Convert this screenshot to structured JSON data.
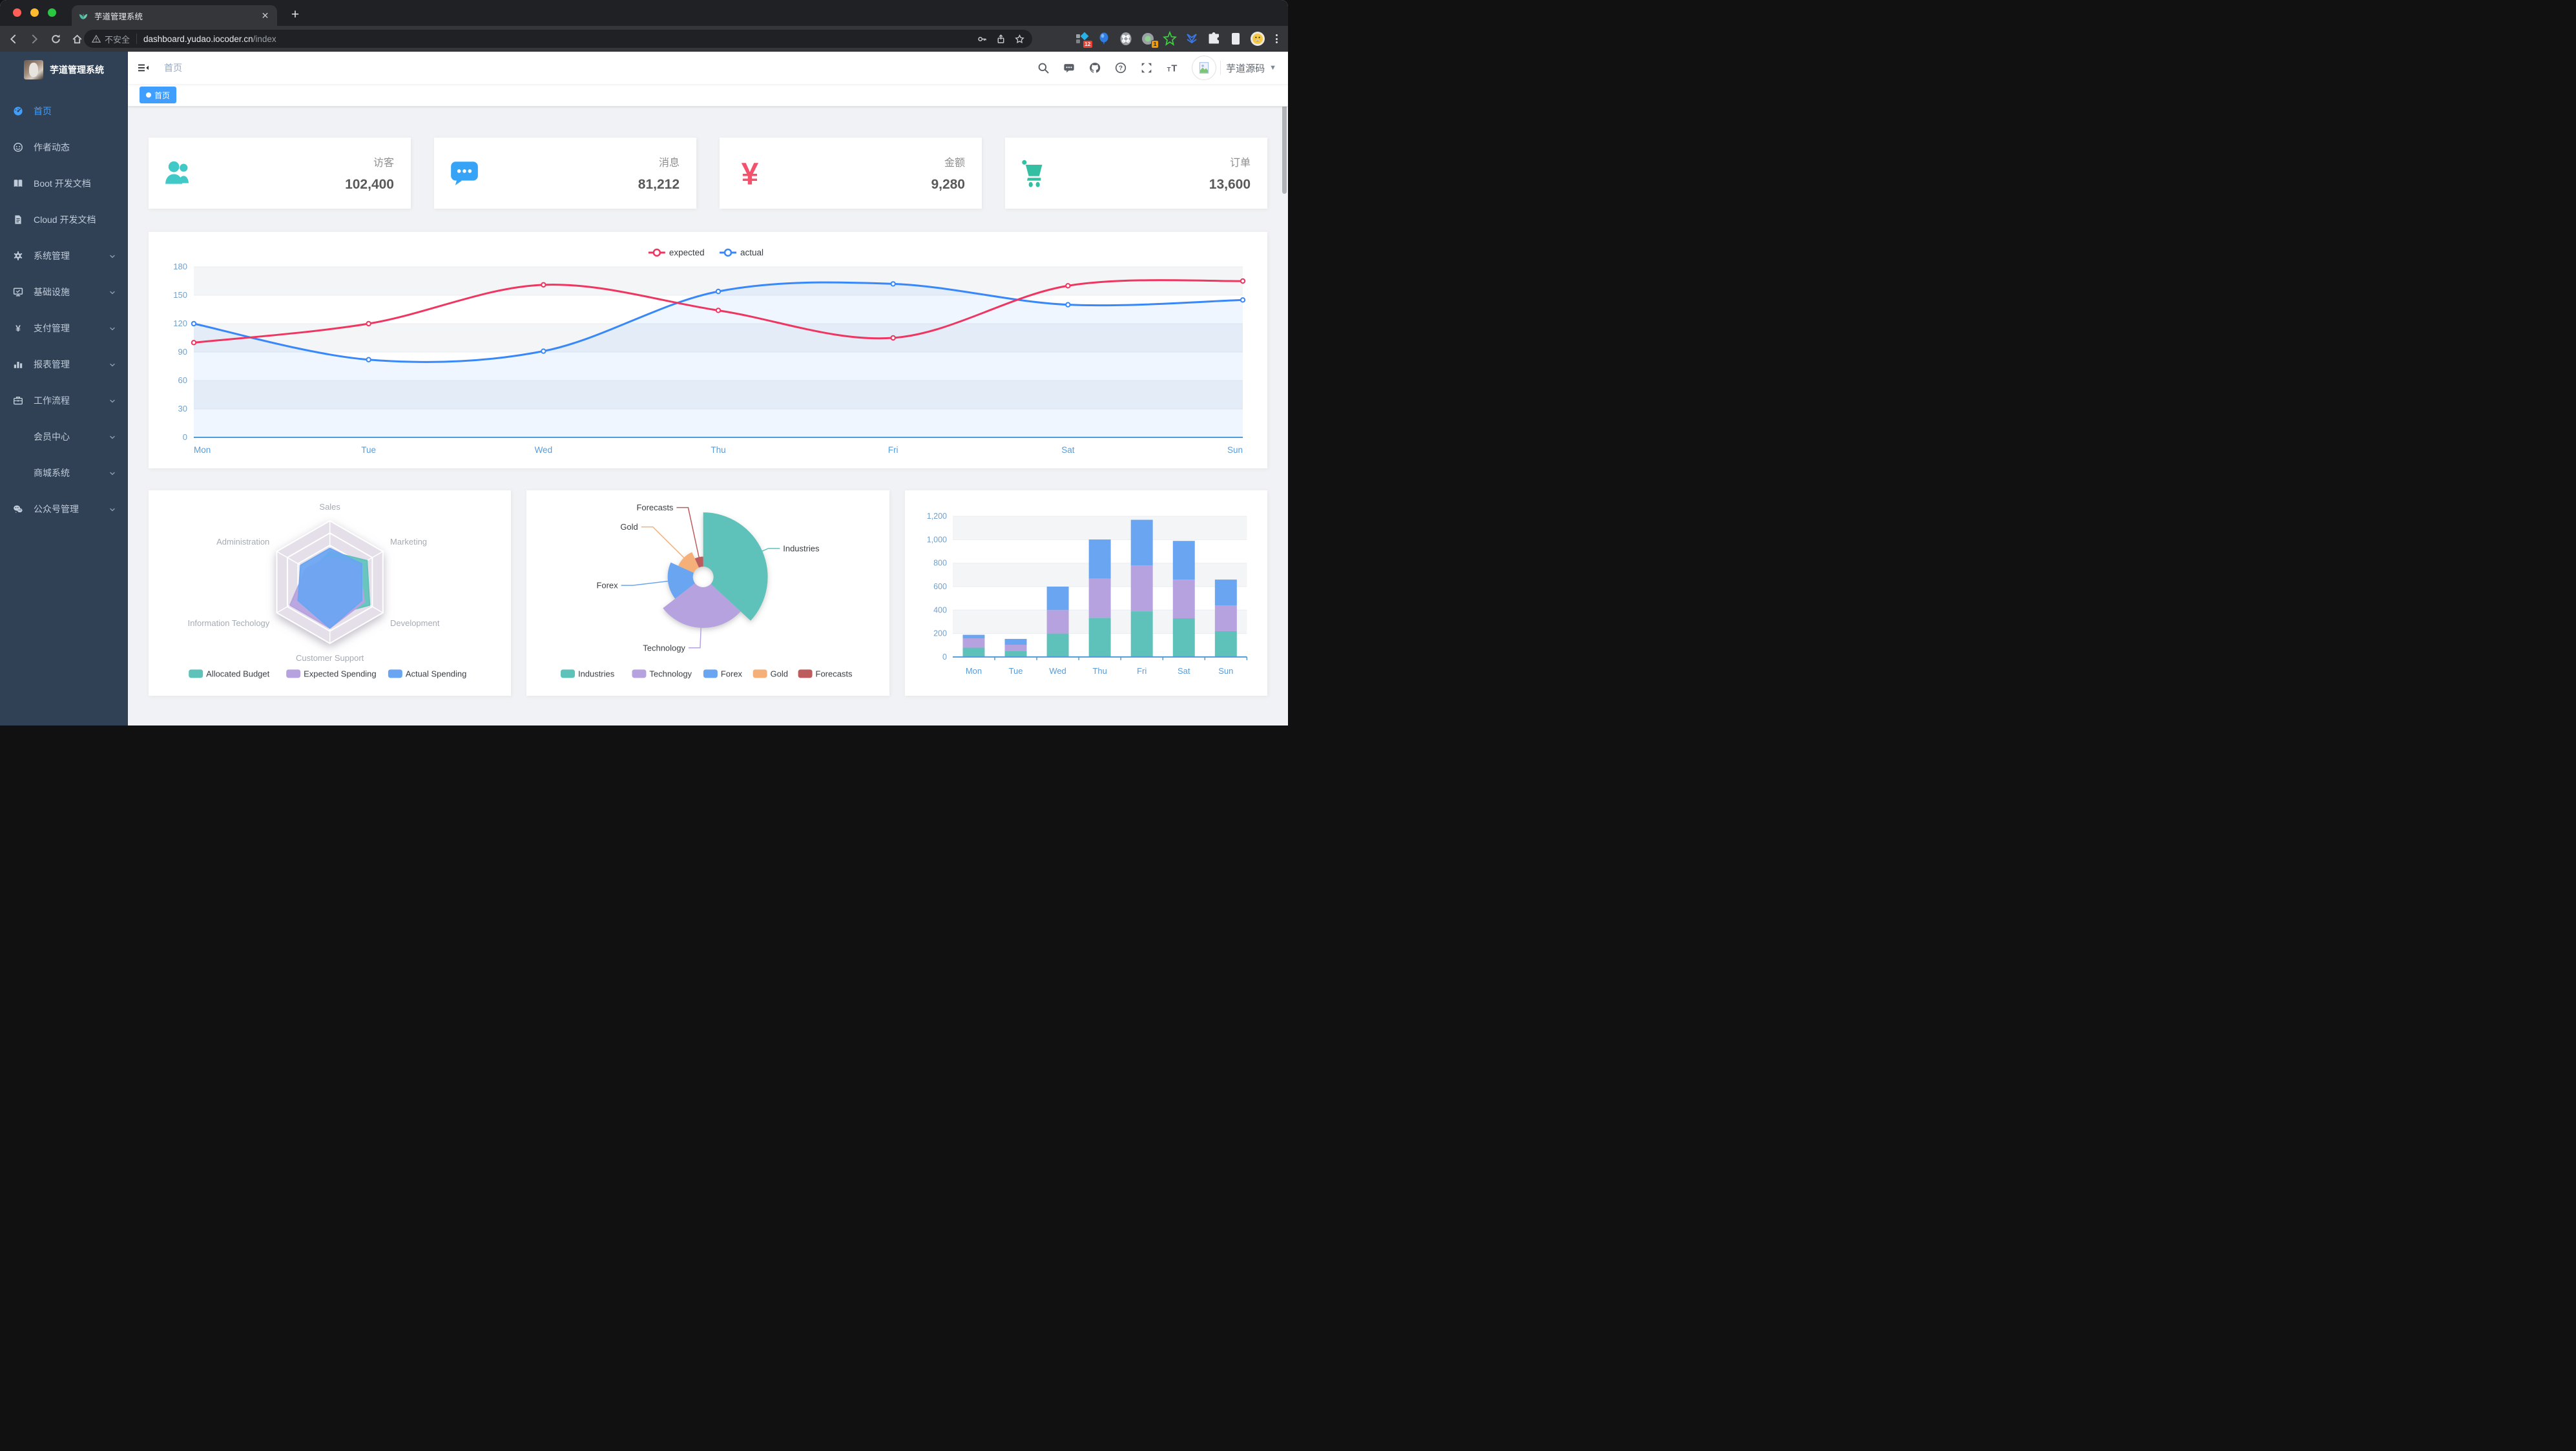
{
  "theme": {
    "accent": "#409eff",
    "sidebar_bg": "#304156",
    "sidebar_text": "#bfcbd9",
    "main_bg": "#f0f2f5",
    "chrome_bg": "#202124",
    "chrome_toolbar_bg": "#35363a"
  },
  "browser": {
    "window_controls": [
      "close",
      "minimize",
      "zoom"
    ],
    "tab": {
      "title": "芋道管理系统",
      "favicon": "leaf-icon"
    },
    "toolbar": {
      "security_chip": "不安全",
      "url_host": "dashboard.yudao.iocoder.cn",
      "url_path": "/index",
      "extensions": [
        {
          "name": "extension-diamond",
          "badge": "12"
        },
        {
          "name": "extension-balloon",
          "badge": ""
        },
        {
          "name": "extension-command",
          "badge": ""
        },
        {
          "name": "extension-status",
          "badge": "1"
        },
        {
          "name": "extension-green-star",
          "badge": ""
        },
        {
          "name": "extension-chevrons",
          "badge": ""
        }
      ]
    }
  },
  "sidebar": {
    "logo_title": "芋道管理系统",
    "items": [
      {
        "label": "首页",
        "icon": "dashboard-icon",
        "active": true,
        "arrow": false,
        "indent": false
      },
      {
        "label": "作者动态",
        "icon": "people-icon",
        "active": false,
        "arrow": false,
        "indent": false
      },
      {
        "label": "Boot 开发文档",
        "icon": "book-icon",
        "active": false,
        "arrow": false,
        "indent": false
      },
      {
        "label": "Cloud 开发文档",
        "icon": "document-icon",
        "active": false,
        "arrow": false,
        "indent": false
      },
      {
        "label": "系统管理",
        "icon": "gear-icon",
        "active": false,
        "arrow": true,
        "indent": false
      },
      {
        "label": "基础设施",
        "icon": "monitor-icon",
        "active": false,
        "arrow": true,
        "indent": false
      },
      {
        "label": "支付管理",
        "icon": "yen-icon",
        "active": false,
        "arrow": true,
        "indent": false
      },
      {
        "label": "报表管理",
        "icon": "bar-chart-icon",
        "active": false,
        "arrow": true,
        "indent": false
      },
      {
        "label": "工作流程",
        "icon": "briefcase-icon",
        "active": false,
        "arrow": true,
        "indent": false
      },
      {
        "label": "会员中心",
        "icon": null,
        "active": false,
        "arrow": true,
        "indent": true
      },
      {
        "label": "商城系统",
        "icon": null,
        "active": false,
        "arrow": true,
        "indent": true
      },
      {
        "label": "公众号管理",
        "icon": "wechat-icon",
        "active": false,
        "arrow": true,
        "indent": false
      }
    ]
  },
  "navbar": {
    "breadcrumb": "首页",
    "icons": [
      "search-icon",
      "message-icon",
      "github-icon",
      "question-icon",
      "fullscreen-icon",
      "font-size-icon"
    ],
    "username": "芋道源码"
  },
  "tags_view": {
    "tags": [
      {
        "label": "首页",
        "active": true
      }
    ]
  },
  "stat_cards": [
    {
      "label": "访客",
      "value": "102,400",
      "icon": "people-group-icon",
      "color": "#40c9c6"
    },
    {
      "label": "消息",
      "value": "81,212",
      "icon": "chat-bubble-icon",
      "color": "#36a3f7"
    },
    {
      "label": "金额",
      "value": "9,280",
      "icon": "yen-money-icon",
      "color": "#f4516c"
    },
    {
      "label": "订单",
      "value": "13,600",
      "icon": "shopping-cart-icon",
      "color": "#34bfa3"
    }
  ],
  "chart_data": [
    {
      "type": "line",
      "categories": [
        "Mon",
        "Tue",
        "Wed",
        "Thu",
        "Fri",
        "Sat",
        "Sun"
      ],
      "series": [
        {
          "name": "expected",
          "color": "#ef3661",
          "values": [
            100,
            120,
            161,
            134,
            105,
            160,
            165
          ]
        },
        {
          "name": "actual",
          "color": "#3888fa",
          "area": "rgba(56,136,250,0.08)",
          "values": [
            120,
            82,
            91,
            154,
            162,
            140,
            145
          ]
        }
      ],
      "ylim": [
        0,
        180
      ],
      "ytick": 30,
      "legend": [
        "expected",
        "actual"
      ],
      "legend_position": "top",
      "grid": true
    },
    {
      "type": "radar",
      "indicators": [
        {
          "name": "Sales",
          "max": 10000
        },
        {
          "name": "Administration",
          "max": 20000
        },
        {
          "name": "Information Techology",
          "max": 20000
        },
        {
          "name": "Customer Support",
          "max": 20000
        },
        {
          "name": "Development",
          "max": 20000
        },
        {
          "name": "Marketing",
          "max": 20000
        }
      ],
      "series": [
        {
          "name": "Allocated Budget",
          "color": "#5fc2ba",
          "values": [
            5000,
            7000,
            12000,
            11000,
            15000,
            14000
          ]
        },
        {
          "name": "Expected Spending",
          "color": "#b6a2de",
          "values": [
            4000,
            9000,
            15000,
            15000,
            13000,
            11000
          ]
        },
        {
          "name": "Actual Spending",
          "color": "#6aa5f2",
          "values": [
            5500,
            11000,
            12000,
            15000,
            12000,
            12000
          ]
        }
      ],
      "legend_position": "bottom"
    },
    {
      "type": "pie",
      "rose": true,
      "data": [
        {
          "name": "Industries",
          "value": 320,
          "color": "#5fc2ba"
        },
        {
          "name": "Technology",
          "value": 240,
          "color": "#b6a2de"
        },
        {
          "name": "Forex",
          "value": 149,
          "color": "#6aa5f2"
        },
        {
          "name": "Gold",
          "value": 100,
          "color": "#f5b07a"
        },
        {
          "name": "Forecasts",
          "value": 59,
          "color": "#bd5c5c"
        }
      ],
      "legend": [
        "Industries",
        "Technology",
        "Forex",
        "Gold",
        "Forecasts"
      ],
      "legend_position": "bottom"
    },
    {
      "type": "bar",
      "stacked": true,
      "categories": [
        "Mon",
        "Tue",
        "Wed",
        "Thu",
        "Fri",
        "Sat",
        "Sun"
      ],
      "series": [
        {
          "color": "#5fc2ba",
          "values": [
            79,
            52,
            200,
            334,
            390,
            330,
            220
          ]
        },
        {
          "color": "#b6a2de",
          "values": [
            80,
            52,
            200,
            334,
            390,
            330,
            220
          ]
        },
        {
          "color": "#6aa5f2",
          "values": [
            30,
            50,
            200,
            334,
            390,
            330,
            220
          ]
        }
      ],
      "ylim": [
        0,
        1200
      ],
      "ytick": 200,
      "grid": true
    }
  ]
}
